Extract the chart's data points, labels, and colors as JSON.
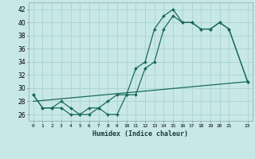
{
  "xlabel": "Humidex (Indice chaleur)",
  "bg_color": "#c8e8e8",
  "grid_color": "#afd4d4",
  "line_color": "#1a6b5a",
  "xlim": [
    -0.5,
    23.5
  ],
  "ylim": [
    25,
    43
  ],
  "yticks": [
    26,
    28,
    30,
    32,
    34,
    36,
    38,
    40,
    42
  ],
  "xticks": [
    0,
    1,
    2,
    3,
    4,
    5,
    6,
    7,
    8,
    9,
    10,
    11,
    12,
    13,
    14,
    15,
    16,
    17,
    18,
    19,
    20,
    21,
    23
  ],
  "xtick_labels": [
    "0",
    "1",
    "2",
    "3",
    "4",
    "5",
    "6",
    "7",
    "8",
    "9",
    "10",
    "11",
    "12",
    "13",
    "14",
    "15",
    "16",
    "17",
    "18",
    "19",
    "20",
    "21",
    "23"
  ],
  "series1_x": [
    0,
    1,
    2,
    3,
    4,
    5,
    6,
    7,
    8,
    9,
    10,
    11,
    12,
    13,
    14,
    15,
    16,
    17,
    18,
    19,
    20,
    21,
    23
  ],
  "series1_y": [
    29,
    27,
    27,
    28,
    27,
    26,
    26,
    27,
    28,
    29,
    29,
    33,
    34,
    39,
    41,
    42,
    40,
    40,
    39,
    39,
    40,
    39,
    31
  ],
  "series2_x": [
    0,
    1,
    2,
    3,
    4,
    5,
    6,
    7,
    8,
    9,
    10,
    11,
    12,
    13,
    14,
    15,
    16,
    17,
    18,
    19,
    20,
    21,
    23
  ],
  "series2_y": [
    29,
    27,
    27,
    27,
    26,
    26,
    27,
    27,
    26,
    26,
    29,
    29,
    33,
    34,
    39,
    41,
    40,
    40,
    39,
    39,
    40,
    39,
    31
  ],
  "series3_x": [
    0,
    23
  ],
  "series3_y": [
    28,
    31
  ]
}
